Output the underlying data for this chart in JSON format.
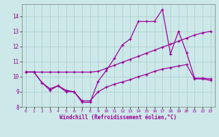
{
  "xlabel": "Windchill (Refroidissement éolien,°C)",
  "background_color": "#cce8e8",
  "grid_color": "#aacccc",
  "line_color": "#990099",
  "xlim": [
    -0.5,
    23.5
  ],
  "ylim": [
    8.0,
    14.8
  ],
  "xticks": [
    0,
    1,
    2,
    3,
    4,
    5,
    6,
    7,
    8,
    9,
    10,
    11,
    12,
    13,
    14,
    15,
    16,
    17,
    18,
    19,
    20,
    21,
    22,
    23
  ],
  "yticks": [
    8,
    9,
    10,
    11,
    12,
    13,
    14
  ],
  "line1_x": [
    0,
    1,
    2,
    3,
    4,
    5,
    6,
    7,
    8,
    9,
    10,
    11,
    12,
    13,
    14,
    15,
    16,
    17,
    18,
    19,
    20,
    21,
    22,
    23
  ],
  "line1_y": [
    10.3,
    10.3,
    9.6,
    9.1,
    9.4,
    9.0,
    9.0,
    8.3,
    8.3,
    9.7,
    10.4,
    11.2,
    12.1,
    12.5,
    13.65,
    13.65,
    13.65,
    14.45,
    11.5,
    13.0,
    11.6,
    9.9,
    9.9,
    9.85
  ],
  "line2_x": [
    0,
    1,
    2,
    3,
    4,
    5,
    6,
    7,
    8,
    9,
    10,
    11,
    12,
    13,
    14,
    15,
    16,
    17,
    18,
    19,
    20,
    21,
    22,
    23
  ],
  "line2_y": [
    10.3,
    10.3,
    10.3,
    10.3,
    10.3,
    10.3,
    10.3,
    10.3,
    10.3,
    10.35,
    10.55,
    10.75,
    10.95,
    11.15,
    11.35,
    11.55,
    11.75,
    11.95,
    12.15,
    12.35,
    12.55,
    12.75,
    12.9,
    13.0
  ],
  "line3_x": [
    0,
    1,
    2,
    3,
    4,
    5,
    6,
    7,
    8,
    9,
    10,
    11,
    12,
    13,
    14,
    15,
    16,
    17,
    18,
    19,
    20,
    21,
    22,
    23
  ],
  "line3_y": [
    10.3,
    10.3,
    9.6,
    9.2,
    9.4,
    9.1,
    9.0,
    8.4,
    8.4,
    9.0,
    9.3,
    9.5,
    9.65,
    9.8,
    10.0,
    10.15,
    10.35,
    10.5,
    10.6,
    10.7,
    10.8,
    9.85,
    9.85,
    9.75
  ]
}
